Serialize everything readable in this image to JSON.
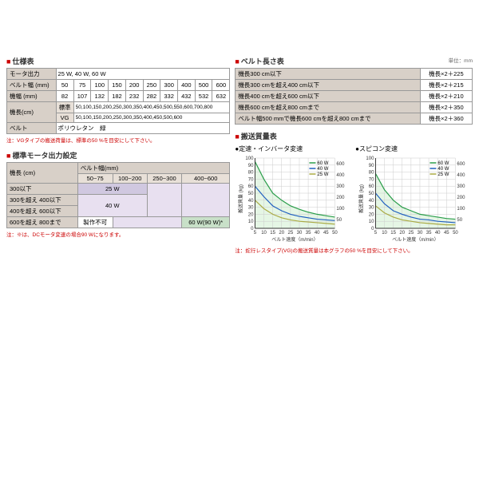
{
  "spec_table": {
    "title": "仕様表",
    "rows": [
      {
        "label": "モータ出力",
        "value": "25 W, 40 W, 60 W"
      },
      {
        "label": "ベルト幅 (mm)",
        "cells": [
          "50",
          "75",
          "100",
          "150",
          "200",
          "250",
          "300",
          "400",
          "500",
          "600"
        ]
      },
      {
        "label": "機幅 (mm)",
        "cells": [
          "82",
          "107",
          "132",
          "182",
          "232",
          "282",
          "332",
          "432",
          "532",
          "632"
        ]
      },
      {
        "label": "機長(cm)",
        "sublabel1": "標準",
        "subvalue1": "50,100,150,200,250,300,350,400,450,500,550,600,700,800",
        "sublabel2": "VG",
        "subvalue2": "50,100,150,200,250,300,350,400,450,500,600"
      },
      {
        "label": "ベルト",
        "value": "ポリウレタン　緑"
      }
    ],
    "note": "注：VGタイプの搬送荷量は、標準の50 %を目安にして下さい。"
  },
  "belt_length": {
    "title": "ベルト長さ表",
    "unit": "単位：mm",
    "rows": [
      [
        "機長300 cm以下",
        "機長×2＋225"
      ],
      [
        "機長300 cmを超え400 cm以下",
        "機長×2＋215"
      ],
      [
        "機長400 cmを超え600 cm以下",
        "機長×2＋210"
      ],
      [
        "機長600 cmを超え800 cmまで",
        "機長×2＋350"
      ],
      [
        "ベルト幅500 mmで機長600 cmを超え800 cmまで",
        "機長×2＋360"
      ]
    ]
  },
  "motor_setting": {
    "title": "標準モータ出力設定",
    "col_header": "ベルト幅(mm)",
    "row_header": "機長 (cm)",
    "cols": [
      "50~75",
      "100~200",
      "250~300",
      "400~600"
    ],
    "rows": [
      {
        "label": "300以下",
        "cells": [
          "25 W",
          "",
          "",
          ""
        ]
      },
      {
        "label": "300を超え 400以下",
        "cells": [
          "",
          "",
          "",
          ""
        ]
      },
      {
        "label": "400を超え 600以下",
        "cells": [
          "",
          "40 W",
          "",
          ""
        ]
      },
      {
        "label": "600を超え 800まで",
        "cells": [
          "製作不可",
          "",
          "",
          "60 W(90 W)*"
        ]
      }
    ],
    "note": "注：※は、DCモータ変速の場合90 Wになります。"
  },
  "capacity": {
    "title": "搬送質量表",
    "chart1_title": "●定速・インバータ変速",
    "chart2_title": "●スピコン変速",
    "xlabel": "ベルト速度（m/min）",
    "ylabel": "搬送質量 (kg)",
    "ylabel_right": "ベルト幅によるS字カーブ限界値 mm",
    "legend": [
      "60 W",
      "40 W",
      "25 W"
    ],
    "colors": {
      "60W": "#2a9d4a",
      "40W": "#2060c0",
      "25W": "#aaaa44"
    },
    "xlim": [
      5,
      50
    ],
    "xticks": [
      5,
      10,
      15,
      20,
      25,
      30,
      35,
      40,
      45,
      50
    ],
    "ylim": [
      0,
      100
    ],
    "yticks": [
      0,
      10,
      20,
      30,
      40,
      50,
      60,
      70,
      80,
      90,
      100
    ],
    "right_ticks": [
      50,
      100,
      200,
      300,
      400,
      600
    ],
    "chart1": {
      "60W": [
        [
          5,
          95
        ],
        [
          10,
          70
        ],
        [
          15,
          50
        ],
        [
          20,
          40
        ],
        [
          25,
          32
        ],
        [
          30,
          27
        ],
        [
          35,
          23
        ],
        [
          40,
          20
        ],
        [
          45,
          18
        ],
        [
          50,
          16
        ]
      ],
      "40W": [
        [
          5,
          60
        ],
        [
          10,
          45
        ],
        [
          15,
          32
        ],
        [
          20,
          25
        ],
        [
          25,
          20
        ],
        [
          30,
          17
        ],
        [
          35,
          15
        ],
        [
          40,
          13
        ],
        [
          45,
          12
        ],
        [
          50,
          11
        ]
      ],
      "25W": [
        [
          5,
          40
        ],
        [
          10,
          28
        ],
        [
          15,
          20
        ],
        [
          20,
          15
        ],
        [
          25,
          12
        ],
        [
          30,
          10
        ],
        [
          35,
          9
        ],
        [
          40,
          8
        ],
        [
          45,
          7
        ],
        [
          50,
          6
        ]
      ]
    },
    "chart2": {
      "60W": [
        [
          5,
          78
        ],
        [
          10,
          55
        ],
        [
          15,
          40
        ],
        [
          20,
          30
        ],
        [
          25,
          25
        ],
        [
          30,
          20
        ],
        [
          35,
          18
        ],
        [
          40,
          16
        ],
        [
          45,
          14
        ],
        [
          50,
          13
        ]
      ],
      "40W": [
        [
          5,
          50
        ],
        [
          10,
          35
        ],
        [
          15,
          25
        ],
        [
          20,
          20
        ],
        [
          25,
          16
        ],
        [
          30,
          13
        ],
        [
          35,
          12
        ],
        [
          40,
          10
        ],
        [
          45,
          9
        ],
        [
          50,
          8
        ]
      ],
      "25W": [
        [
          5,
          32
        ],
        [
          10,
          22
        ],
        [
          15,
          16
        ],
        [
          20,
          12
        ],
        [
          25,
          10
        ],
        [
          30,
          8
        ],
        [
          35,
          7
        ],
        [
          40,
          6
        ],
        [
          45,
          5
        ],
        [
          50,
          5
        ]
      ]
    },
    "note": "注：蛇行レスタイプ(VG)の搬送質量は本グラフの50 %を目安にして下さい。"
  }
}
